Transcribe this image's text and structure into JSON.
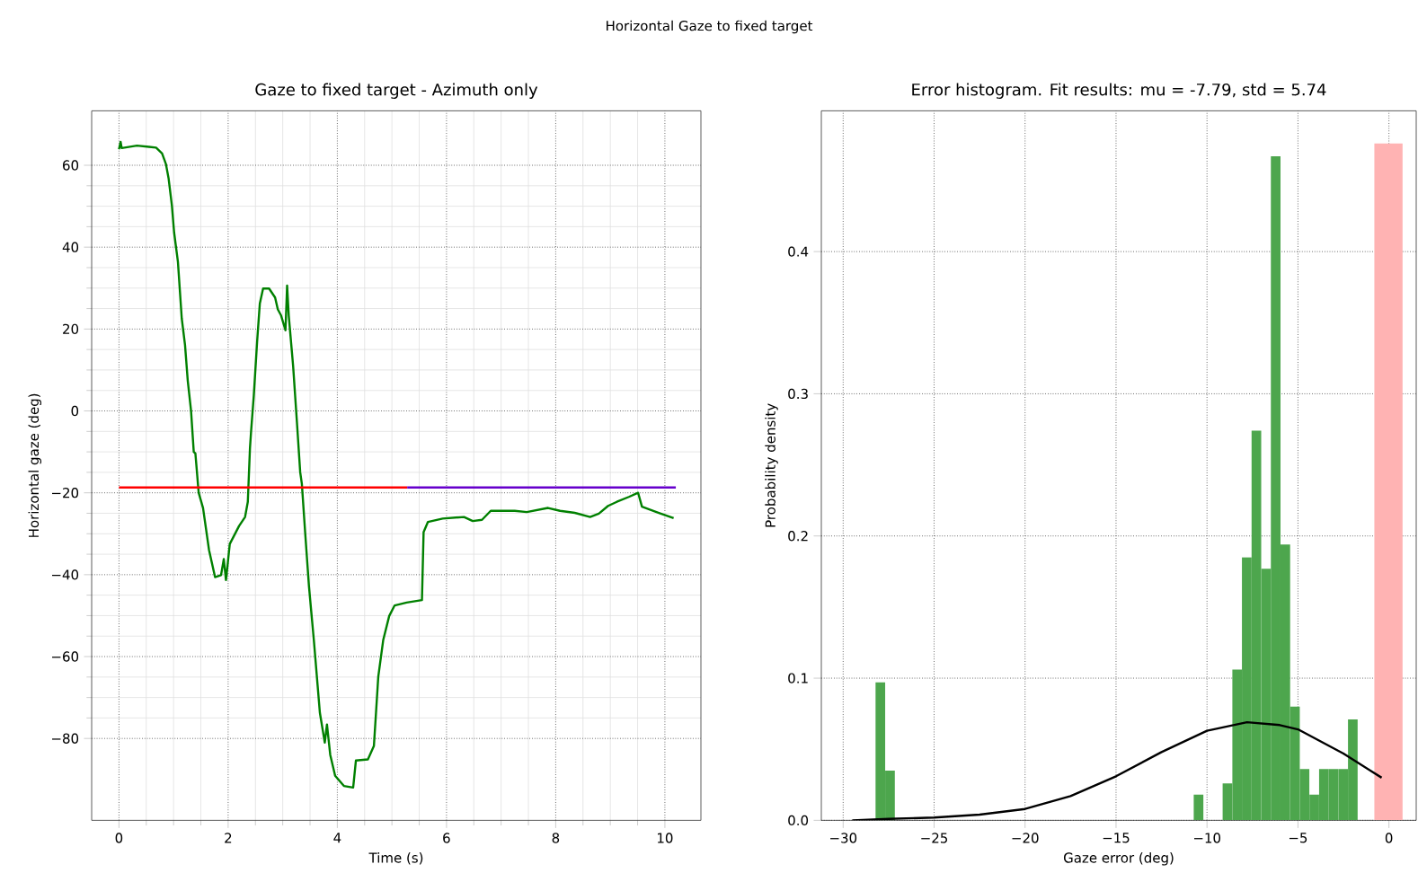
{
  "chart_data": [
    {
      "type": "line",
      "title": "Gaze to fixed target - Azimuth only",
      "xlabel": "Time (s)",
      "ylabel": "Horizontal gaze (deg)",
      "annotations": [
        "Horizontal Gaze to fixed target"
      ],
      "xlim": [
        -0.5,
        10.66
      ],
      "ylim": [
        -100,
        73.3
      ],
      "xticks": [
        0,
        2,
        4,
        6,
        8,
        10
      ],
      "yticks": [
        {
          "value": -80,
          "label": "−80"
        },
        {
          "value": -60,
          "label": "−60"
        },
        {
          "value": -40,
          "label": "−40"
        },
        {
          "value": -20,
          "label": "−20"
        },
        0,
        20,
        40,
        60
      ],
      "grid": true,
      "series": [
        {
          "color": "#008000",
          "x": [
            0,
            0.03,
            0.05,
            0.33,
            0.55,
            0.68,
            0.79,
            0.86,
            0.91,
            0.97,
            1.01,
            1.08,
            1.15,
            1.21,
            1.26,
            1.32,
            1.37,
            1.4,
            1.46,
            1.54,
            1.65,
            1.76,
            1.87,
            1.92,
            1.96,
            2.03,
            2.2,
            2.31,
            2.36,
            2.4,
            2.42,
            2.47,
            2.53,
            2.58,
            2.64,
            2.75,
            2.86,
            2.91,
            2.97,
            3.05,
            3.08,
            3.11,
            3.19,
            3.26,
            3.32,
            3.35,
            3.41,
            3.48,
            3.57,
            3.68,
            3.77,
            3.81,
            3.87,
            3.96,
            4.12,
            4.29,
            4.34,
            4.56,
            4.67,
            4.75,
            4.84,
            4.95,
            5.05,
            5.27,
            5.55,
            5.58,
            5.66,
            5.93,
            6.32,
            6.48,
            6.65,
            6.81,
            7.25,
            7.47,
            7.86,
            8.08,
            8.35,
            8.63,
            8.79,
            8.96,
            9.12,
            9.34,
            9.51,
            9.58,
            9.89,
            10.16
          ],
          "values": [
            63.9,
            65.7,
            64.2,
            64.8,
            64.5,
            64.3,
            62.9,
            60.3,
            56.7,
            50.1,
            43.6,
            36.4,
            22.6,
            16.1,
            7.4,
            0.1,
            -10,
            -10.4,
            -20,
            -23.7,
            -34,
            -40.6,
            -40.1,
            -36.2,
            -41.3,
            -32.5,
            -28.1,
            -25.9,
            -22.2,
            -9,
            -5,
            3.8,
            16.8,
            26.2,
            29.9,
            29.9,
            27.7,
            24.8,
            23.3,
            19.7,
            30.6,
            23.3,
            11,
            -2.8,
            -15,
            -17.8,
            -29.6,
            -42.8,
            -56,
            -73.7,
            -81,
            -76.6,
            -84,
            -89.1,
            -91.6,
            -92,
            -85.4,
            -85.1,
            -81.8,
            -64.9,
            -56,
            -50.1,
            -47.5,
            -46.8,
            -46.2,
            -29.6,
            -27.1,
            -26.3,
            -25.9,
            -26.9,
            -26.6,
            -24.4,
            -24.4,
            -24.7,
            -23.7,
            -24.4,
            -24.9,
            -25.9,
            -25.1,
            -23.2,
            -22.2,
            -21,
            -20,
            -23.4,
            -24.9,
            -26.2
          ]
        },
        {
          "color": "#ff0000",
          "x": [
            0,
            5.28
          ],
          "values": [
            -18.7,
            -18.7
          ]
        },
        {
          "color": "#6600cc",
          "x": [
            5.28,
            10.2
          ],
          "values": [
            -18.7,
            -18.7
          ]
        }
      ]
    },
    {
      "type": "histogram",
      "title": "Error histogram. Fit results: mu = -7.79,  std = 5.74",
      "xlabel": "Gaze error (deg)",
      "ylabel": "Probability density",
      "xlim": [
        -31.2,
        1.5
      ],
      "ylim": [
        0,
        0.499
      ],
      "xticks": [
        {
          "value": -30,
          "label": "−30"
        },
        {
          "value": -25,
          "label": "−25"
        },
        {
          "value": -20,
          "label": "−20"
        },
        {
          "value": -15,
          "label": "−15"
        },
        {
          "value": -10,
          "label": "−10"
        },
        {
          "value": -5,
          "label": "−5"
        },
        0
      ],
      "yticks": [
        {
          "value": 0,
          "label": "0.0"
        },
        0.1,
        0.2,
        0.3,
        0.4
      ],
      "grid": true,
      "series": [
        {
          "type": "histogram",
          "color": "#4da64d",
          "bins": [
            -28.22,
            -27.69,
            -27.16,
            -26.63,
            -26.1,
            -25.57,
            -25.04,
            -24.51,
            -23.98,
            -23.45,
            -22.92,
            -22.39,
            -21.86,
            -21.33,
            -20.8,
            -20.27,
            -19.74,
            -19.21,
            -18.68,
            -18.15,
            -17.62,
            -17.09,
            -16.56,
            -16.03,
            -15.5,
            -14.97,
            -14.44,
            -13.91,
            -13.38,
            -12.85,
            -12.32,
            -11.79,
            -11.26,
            -10.73,
            -10.2,
            -9.67,
            -9.14,
            -8.61,
            -8.08,
            -7.55,
            -7.02,
            -6.49,
            -5.96,
            -5.43,
            -4.9,
            -4.37,
            -3.84,
            -3.31,
            -2.78,
            -2.25,
            -1.72
          ],
          "values": [
            0.097,
            0.035,
            0,
            0,
            0,
            0,
            0,
            0,
            0,
            0,
            0,
            0,
            0,
            0,
            0,
            0,
            0,
            0,
            0,
            0,
            0,
            0,
            0,
            0,
            0,
            0,
            0,
            0,
            0,
            0,
            0,
            0,
            0,
            0.018,
            0,
            0,
            0.026,
            0.106,
            0.185,
            0.274,
            0.177,
            0.467,
            0.194,
            0.08,
            0.036,
            0.018,
            0.036,
            0.036,
            0.036,
            0.071
          ]
        },
        {
          "type": "histogram",
          "color": "#ffb3b3",
          "bins": [
            -0.8,
            0.75
          ],
          "values": [
            0.476
          ]
        },
        {
          "type": "line",
          "color": "#000000",
          "x": [
            -29.5,
            -27.5,
            -25,
            -22.5,
            -20,
            -17.5,
            -15,
            -12.5,
            -10,
            -7.8,
            -6,
            -5,
            -2.5,
            -0.4
          ],
          "values": [
            0,
            0.001,
            0.002,
            0.004,
            0.008,
            0.017,
            0.031,
            0.048,
            0.063,
            0.069,
            0.067,
            0.064,
            0.047,
            0.03
          ]
        }
      ]
    }
  ]
}
